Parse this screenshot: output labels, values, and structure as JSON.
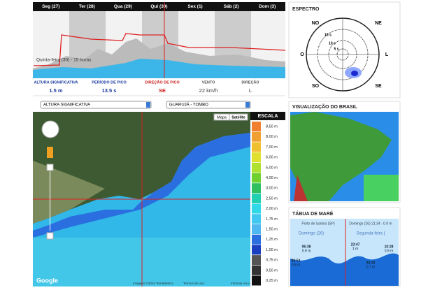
{
  "forecast": {
    "days": [
      "Seg (27)",
      "Ter (28)",
      "Qua (29)",
      "Qui (30)",
      "Sex (1)",
      "Sáb (2)",
      "Dom (3)"
    ],
    "hover_label": "Quinta-feira (30) - 15 horas",
    "fields": [
      {
        "label": "ALTURA SIGNIFICATIVA",
        "value": "1.5 m"
      },
      {
        "label": "PERÍODO DE PICO",
        "value": "13.5 s"
      },
      {
        "label": "DIREÇÃO DE PICO",
        "value": "SE"
      },
      {
        "label": "VENTO",
        "value": "22 km/h"
      },
      {
        "label": "DIREÇÃO",
        "value": "L"
      }
    ]
  },
  "map": {
    "variable_select": "ALTURA SIGNIFICATIVA",
    "location_select": "GUARUJÁ - TOMBO",
    "map_button": "Mapa",
    "satellite_button": "Satélite",
    "scale_title": "ESCALA",
    "scale": [
      "8,50 m",
      "8,00 m",
      "7,00 m",
      "6,00 m",
      "5,00 m",
      "4,00 m",
      "3,00 m",
      "2,50 m",
      "2,00 m",
      "1,75 m",
      "1,50 m",
      "1,25 m",
      "1,00 m",
      "0,75 m",
      "0,50 m",
      "0,25 m"
    ],
    "logo": "Google",
    "footer": [
      "Imagens ©2015 TerraMetrics",
      "Termos de Uso",
      "Informar erro no mapa"
    ]
  },
  "spectrum": {
    "title": "ESPECTRO",
    "directions": [
      "NO",
      "NE",
      "O",
      "L",
      "SO",
      "SE"
    ],
    "rings": [
      "15 s",
      "10 s",
      "5 s"
    ]
  },
  "brazil": {
    "title": "VISUALIZAÇÃO DO BRASIL"
  },
  "tide": {
    "title": "TÁBUA DE MARÉ",
    "port": "Porto de Santos (SP)",
    "current": "Domingo (26) 21:34 - 0.9 m",
    "days": [
      "Domingo (26)",
      "Segunda-feira ("
    ],
    "points": [
      {
        "time": "00:54",
        "height": "0.5 m"
      },
      {
        "time": "06:38",
        "height": "0.9 m"
      },
      {
        "time": "23:47",
        "height": "1 m"
      },
      {
        "time": "04:32",
        "height": "0.7 m"
      },
      {
        "time": "10:28",
        "height": "0.9 m"
      }
    ]
  }
}
